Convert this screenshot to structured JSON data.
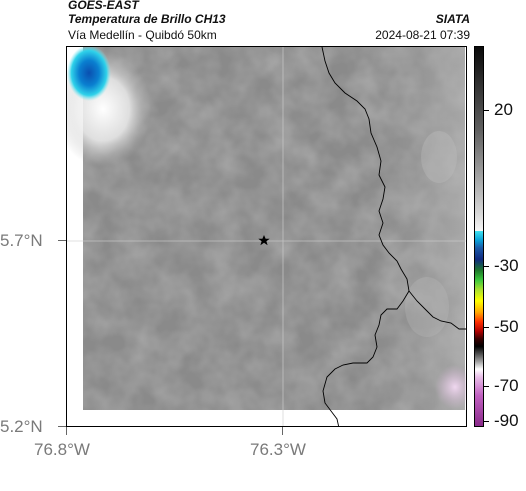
{
  "header": {
    "satellite": "GOES-EAST",
    "product": "Temperatura de Brillo CH13",
    "region": "Vía Medellín - Quibdó 50km",
    "agency": "SIATA",
    "timestamp": "2024-08-21 07:39"
  },
  "map": {
    "x_ticks": [
      "76.8°W",
      "76.3°W"
    ],
    "y_ticks": [
      "5.7°N",
      "5.2°N"
    ],
    "marker_icon": "star-icon",
    "colors": {
      "cloud_cold": "#0a7fd0",
      "cloud_bright": "#ffffff",
      "land_gray": "#8c8c8c",
      "border_line": "#000000",
      "grid_line": "#cfcfcf"
    }
  },
  "colorbar": {
    "ticks": [
      "20",
      "-30",
      "-50",
      "-70",
      "-90"
    ]
  }
}
